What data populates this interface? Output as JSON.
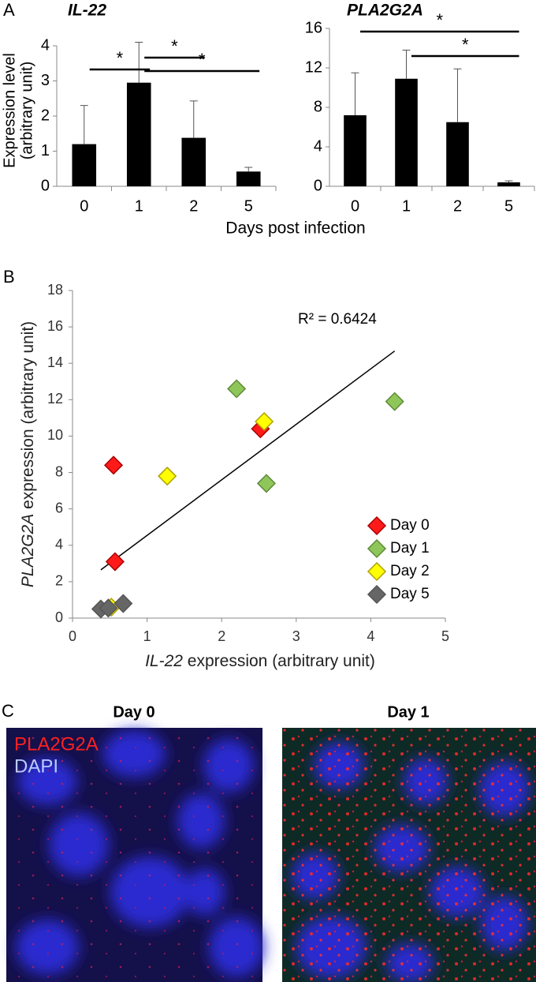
{
  "panels": {
    "a": "A",
    "b": "B",
    "c": "C"
  },
  "chart_data": [
    {
      "type": "bar",
      "title": "IL-22",
      "ylabel": [
        "Expression level",
        "(arbitrary unit)"
      ],
      "xlabel": "Days post infection",
      "categories": [
        "0",
        "1",
        "2",
        "5"
      ],
      "values": [
        1.2,
        2.95,
        1.38,
        0.42
      ],
      "errors": [
        1.1,
        1.15,
        1.05,
        0.12
      ],
      "color": "#000000",
      "ylim": [
        0,
        4
      ],
      "yticks": [
        0,
        1,
        2,
        3,
        4
      ],
      "significance": [
        {
          "between": [
            "0",
            "1"
          ],
          "label": "*"
        },
        {
          "between": [
            "1",
            "2"
          ],
          "label": "*"
        },
        {
          "between": [
            "1",
            "5"
          ],
          "label": "*"
        }
      ]
    },
    {
      "type": "bar",
      "title": "PLA2G2A",
      "categories": [
        "0",
        "1",
        "2",
        "5"
      ],
      "values": [
        7.2,
        10.9,
        6.5,
        0.4
      ],
      "errors": [
        4.3,
        2.9,
        5.4,
        0.15
      ],
      "color": "#000000",
      "ylim": [
        0,
        16
      ],
      "yticks": [
        0,
        4,
        8,
        12,
        16
      ],
      "significance": [
        {
          "between": [
            "0",
            "5"
          ],
          "label": "*"
        },
        {
          "between": [
            "1",
            "5"
          ],
          "label": "*"
        }
      ]
    },
    {
      "type": "scatter",
      "xlabel": [
        "IL-22",
        " expression (arbitrary unit)"
      ],
      "ylabel": [
        "PLA2G2A",
        " expression (arbitrary unit)"
      ],
      "annotation": "R² = 0.6424",
      "trendline": true,
      "legend": "lower right",
      "xlim": [
        0,
        5
      ],
      "xticks": [
        0,
        1,
        2,
        3,
        4,
        5
      ],
      "ylim": [
        0,
        18
      ],
      "yticks": [
        0,
        2,
        4,
        6,
        8,
        10,
        12,
        14,
        16,
        18
      ],
      "series": [
        {
          "name": "Day 0",
          "color": "#ff1a1a",
          "x": [
            0.55,
            0.57,
            2.52
          ],
          "values": [
            8.4,
            3.1,
            10.4
          ]
        },
        {
          "name": "Day 1",
          "color": "#8fc65a",
          "x": [
            2.2,
            4.32,
            2.6
          ],
          "values": [
            12.6,
            11.9,
            7.4
          ]
        },
        {
          "name": "Day 2",
          "color": "#ffff00",
          "x": [
            1.27,
            2.57,
            0.52
          ],
          "values": [
            7.8,
            10.8,
            0.6
          ]
        },
        {
          "name": "Day 5",
          "color": "#666666",
          "x": [
            0.38,
            0.48,
            0.68
          ],
          "values": [
            0.5,
            0.55,
            0.8
          ]
        }
      ]
    }
  ],
  "images": {
    "titles": [
      "Day 0",
      "Day 1"
    ],
    "legend": [
      "PLA2G2A",
      "DAPI"
    ]
  }
}
